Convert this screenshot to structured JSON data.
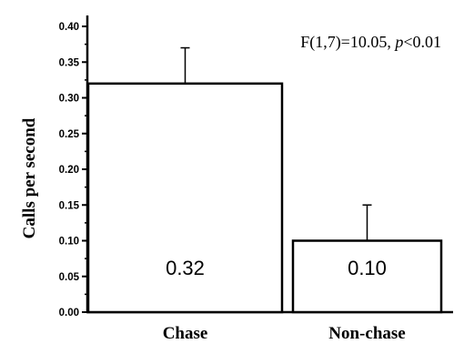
{
  "chart_data": {
    "type": "bar",
    "title": "",
    "xlabel": "",
    "ylabel": "Calls per second",
    "categories": [
      "Chase",
      "Non-chase"
    ],
    "values": [
      0.32,
      0.1
    ],
    "error_bars": [
      0.05,
      0.05
    ],
    "data_labels": [
      "0.32",
      "0.10"
    ],
    "ylim": [
      0,
      0.42
    ],
    "yticks": [
      0.0,
      0.05,
      0.1,
      0.15,
      0.2,
      0.25,
      0.3,
      0.35,
      0.4
    ],
    "ytick_labels": [
      "0.00",
      "0.05",
      "0.10",
      "0.15",
      "0.20",
      "0.25",
      "0.30",
      "0.35",
      "0.40"
    ],
    "annotation": {
      "prefix": "F(1,7)=10.05, ",
      "italic": "p",
      "suffix": "<0.01"
    },
    "grid": false,
    "legend": "none",
    "bar_fill": "#ffffff",
    "bar_stroke": "#000000"
  }
}
